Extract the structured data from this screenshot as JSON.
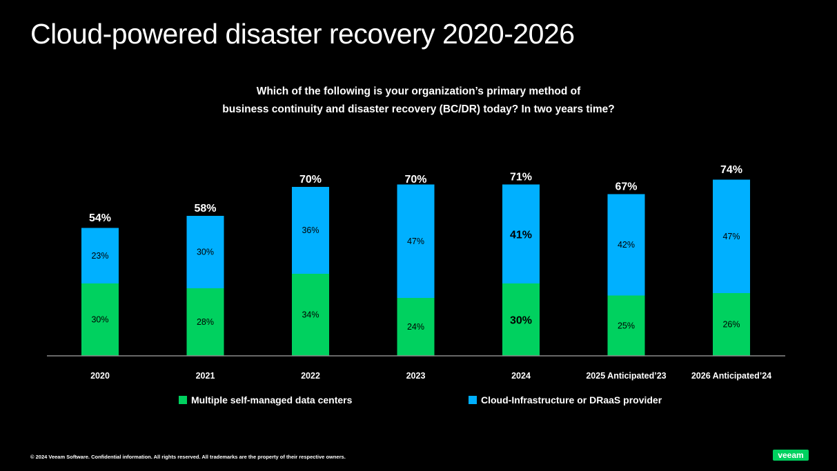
{
  "title": "Cloud-powered disaster recovery 2020-2026",
  "subtitle_lines": [
    "Which of the following is your organization’s primary method of",
    "business continuity and disaster recovery (BC/DR) today?  In two years time?"
  ],
  "colors": {
    "self_managed": "#00d15f",
    "cloud": "#00b0ff",
    "background": "#000000"
  },
  "chart_data": {
    "type": "bar",
    "stacked": true,
    "categories": [
      "2020",
      "2021",
      "2022",
      "2023",
      "2024",
      "2025 Anticipated'23",
      "2026 Anticipated'24"
    ],
    "category_labels": [
      "2020",
      "2021",
      "2022",
      "2023",
      "2024",
      "2025 Anticipated’23",
      "2026 Anticipated’24"
    ],
    "series": [
      {
        "name": "Multiple self-managed data centers",
        "values": [
          30,
          28,
          34,
          24,
          30,
          25,
          26
        ],
        "labels": [
          "30%",
          "28%",
          "34%",
          "24%",
          "30%",
          "25%",
          "26%"
        ],
        "color": "#00d15f"
      },
      {
        "name": "Cloud-Infrastructure or DRaaS provider",
        "values": [
          23,
          30,
          36,
          47,
          41,
          42,
          47
        ],
        "labels": [
          "23%",
          "30%",
          "36%",
          "47%",
          "41%",
          "42%",
          "47%"
        ],
        "color": "#00b0ff"
      }
    ],
    "totals": [
      54,
      58,
      70,
      70,
      71,
      67,
      74
    ],
    "total_labels": [
      "54%",
      "58%",
      "70%",
      "70%",
      "71%",
      "67%",
      "74%"
    ],
    "highlighted_category": "2024",
    "ylim": [
      0,
      80
    ],
    "grid": false,
    "legend_position": "bottom"
  },
  "legend": [
    {
      "label": "Multiple self-managed data centers",
      "color": "#00d15f"
    },
    {
      "label": "Cloud-Infrastructure or DRaaS provider",
      "color": "#00b0ff"
    }
  ],
  "footer": "© 2024 Veeam Software. Confidential information. All rights reserved. All trademarks are the property of their respective owners.",
  "logo": "veeam"
}
